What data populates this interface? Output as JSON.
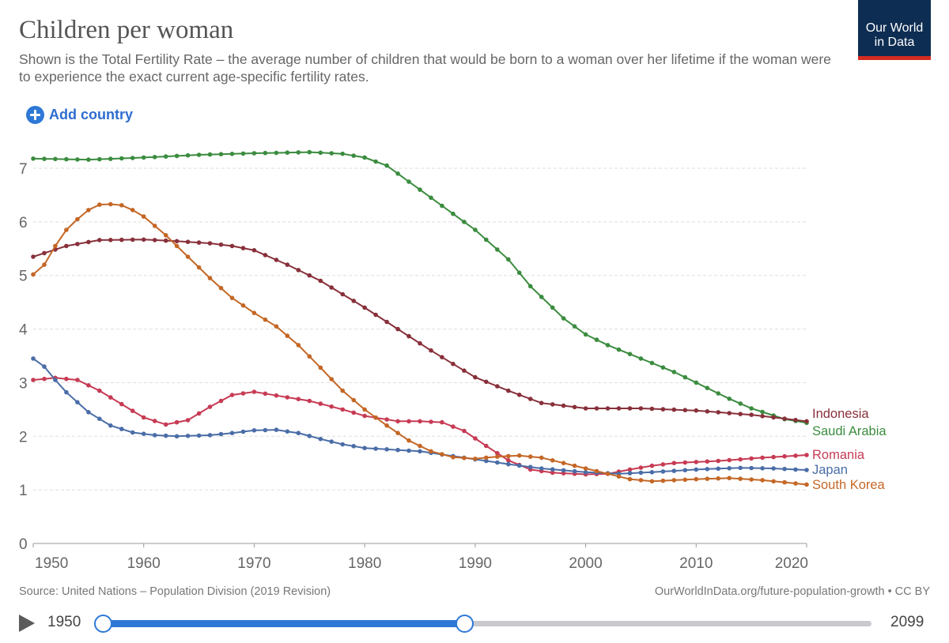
{
  "header": {
    "title": "Children per woman",
    "subtitle": "Shown is the Total Fertility Rate – the average number of children that would be born to a woman over her lifetime if the woman were to experience the exact current age-specific fertility rates.",
    "logo_line1": "Our World",
    "logo_line2": "in Data"
  },
  "controls": {
    "add_country": "Add country"
  },
  "footer": {
    "source": "Source: United Nations – Population Division (2019 Revision)",
    "license": "OurWorldInData.org/future-population-growth • CC BY"
  },
  "timeline": {
    "start_label": "1950",
    "end_label": "2099",
    "range_min": 1950,
    "range_max": 2099,
    "selected_start": 1950,
    "selected_end": 2020
  },
  "colors": {
    "accent": "#2e78d6",
    "grid": "#dddddd",
    "axis": "#666666"
  },
  "chart_data": {
    "type": "line",
    "title": "Children per woman",
    "xlabel": "",
    "ylabel": "",
    "xlim": [
      1950,
      2020
    ],
    "ylim": [
      0,
      7.3
    ],
    "yticks": [
      0,
      1,
      2,
      3,
      4,
      5,
      6,
      7
    ],
    "xticks": [
      1950,
      1960,
      1970,
      1980,
      1990,
      2000,
      2010,
      2020
    ],
    "grid": true,
    "legend": "right end labels",
    "series": [
      {
        "name": "Saudi Arabia",
        "color": "#3b8c3f",
        "points": [
          [
            1950,
            7.18
          ],
          [
            1955,
            7.16
          ],
          [
            1960,
            7.2
          ],
          [
            1965,
            7.25
          ],
          [
            1970,
            7.28
          ],
          [
            1975,
            7.3
          ],
          [
            1978,
            7.27
          ],
          [
            1980,
            7.2
          ],
          [
            1982,
            7.05
          ],
          [
            1985,
            6.6
          ],
          [
            1988,
            6.15
          ],
          [
            1990,
            5.85
          ],
          [
            1993,
            5.3
          ],
          [
            1995,
            4.8
          ],
          [
            1998,
            4.2
          ],
          [
            2000,
            3.9
          ],
          [
            2002,
            3.7
          ],
          [
            2005,
            3.45
          ],
          [
            2008,
            3.2
          ],
          [
            2010,
            3.0
          ],
          [
            2013,
            2.7
          ],
          [
            2015,
            2.52
          ],
          [
            2018,
            2.32
          ],
          [
            2020,
            2.25
          ]
        ]
      },
      {
        "name": "Indonesia",
        "color": "#88303a",
        "points": [
          [
            1950,
            5.35
          ],
          [
            1953,
            5.55
          ],
          [
            1956,
            5.66
          ],
          [
            1960,
            5.67
          ],
          [
            1963,
            5.64
          ],
          [
            1966,
            5.6
          ],
          [
            1968,
            5.55
          ],
          [
            1970,
            5.47
          ],
          [
            1973,
            5.2
          ],
          [
            1976,
            4.9
          ],
          [
            1980,
            4.4
          ],
          [
            1983,
            4.0
          ],
          [
            1986,
            3.6
          ],
          [
            1990,
            3.1
          ],
          [
            1993,
            2.85
          ],
          [
            1996,
            2.62
          ],
          [
            2000,
            2.52
          ],
          [
            2005,
            2.52
          ],
          [
            2010,
            2.48
          ],
          [
            2015,
            2.4
          ],
          [
            2020,
            2.28
          ]
        ]
      },
      {
        "name": "Romania",
        "color": "#c73b54",
        "points": [
          [
            1950,
            3.05
          ],
          [
            1952,
            3.09
          ],
          [
            1954,
            3.05
          ],
          [
            1956,
            2.85
          ],
          [
            1958,
            2.6
          ],
          [
            1960,
            2.35
          ],
          [
            1962,
            2.22
          ],
          [
            1964,
            2.3
          ],
          [
            1966,
            2.55
          ],
          [
            1968,
            2.77
          ],
          [
            1970,
            2.83
          ],
          [
            1972,
            2.76
          ],
          [
            1975,
            2.66
          ],
          [
            1978,
            2.5
          ],
          [
            1980,
            2.38
          ],
          [
            1983,
            2.28
          ],
          [
            1985,
            2.28
          ],
          [
            1987,
            2.26
          ],
          [
            1989,
            2.1
          ],
          [
            1991,
            1.82
          ],
          [
            1993,
            1.55
          ],
          [
            1995,
            1.38
          ],
          [
            1997,
            1.32
          ],
          [
            2000,
            1.29
          ],
          [
            2002,
            1.3
          ],
          [
            2004,
            1.38
          ],
          [
            2006,
            1.45
          ],
          [
            2008,
            1.5
          ],
          [
            2012,
            1.54
          ],
          [
            2016,
            1.6
          ],
          [
            2020,
            1.65
          ]
        ]
      },
      {
        "name": "Japan",
        "color": "#4a6da7",
        "points": [
          [
            1950,
            3.45
          ],
          [
            1951,
            3.3
          ],
          [
            1952,
            3.05
          ],
          [
            1953,
            2.82
          ],
          [
            1955,
            2.45
          ],
          [
            1957,
            2.2
          ],
          [
            1959,
            2.07
          ],
          [
            1961,
            2.02
          ],
          [
            1963,
            2.0
          ],
          [
            1966,
            2.02
          ],
          [
            1968,
            2.06
          ],
          [
            1970,
            2.11
          ],
          [
            1972,
            2.12
          ],
          [
            1974,
            2.06
          ],
          [
            1976,
            1.95
          ],
          [
            1978,
            1.85
          ],
          [
            1980,
            1.78
          ],
          [
            1985,
            1.72
          ],
          [
            1990,
            1.57
          ],
          [
            1993,
            1.48
          ],
          [
            1996,
            1.4
          ],
          [
            2000,
            1.33
          ],
          [
            2003,
            1.3
          ],
          [
            2006,
            1.33
          ],
          [
            2010,
            1.38
          ],
          [
            2014,
            1.41
          ],
          [
            2017,
            1.4
          ],
          [
            2020,
            1.37
          ]
        ]
      },
      {
        "name": "South Korea",
        "color": "#c46726",
        "points": [
          [
            1950,
            5.02
          ],
          [
            1951,
            5.2
          ],
          [
            1952,
            5.55
          ],
          [
            1953,
            5.85
          ],
          [
            1954,
            6.05
          ],
          [
            1955,
            6.22
          ],
          [
            1956,
            6.32
          ],
          [
            1957,
            6.33
          ],
          [
            1958,
            6.31
          ],
          [
            1959,
            6.22
          ],
          [
            1960,
            6.1
          ],
          [
            1962,
            5.75
          ],
          [
            1964,
            5.35
          ],
          [
            1966,
            4.95
          ],
          [
            1968,
            4.58
          ],
          [
            1970,
            4.3
          ],
          [
            1972,
            4.05
          ],
          [
            1974,
            3.7
          ],
          [
            1976,
            3.28
          ],
          [
            1978,
            2.85
          ],
          [
            1980,
            2.5
          ],
          [
            1982,
            2.2
          ],
          [
            1984,
            1.92
          ],
          [
            1986,
            1.72
          ],
          [
            1988,
            1.61
          ],
          [
            1990,
            1.58
          ],
          [
            1992,
            1.62
          ],
          [
            1994,
            1.64
          ],
          [
            1996,
            1.6
          ],
          [
            1998,
            1.5
          ],
          [
            2000,
            1.4
          ],
          [
            2002,
            1.3
          ],
          [
            2004,
            1.2
          ],
          [
            2006,
            1.16
          ],
          [
            2008,
            1.18
          ],
          [
            2010,
            1.2
          ],
          [
            2013,
            1.22
          ],
          [
            2016,
            1.18
          ],
          [
            2020,
            1.1
          ]
        ]
      }
    ]
  }
}
